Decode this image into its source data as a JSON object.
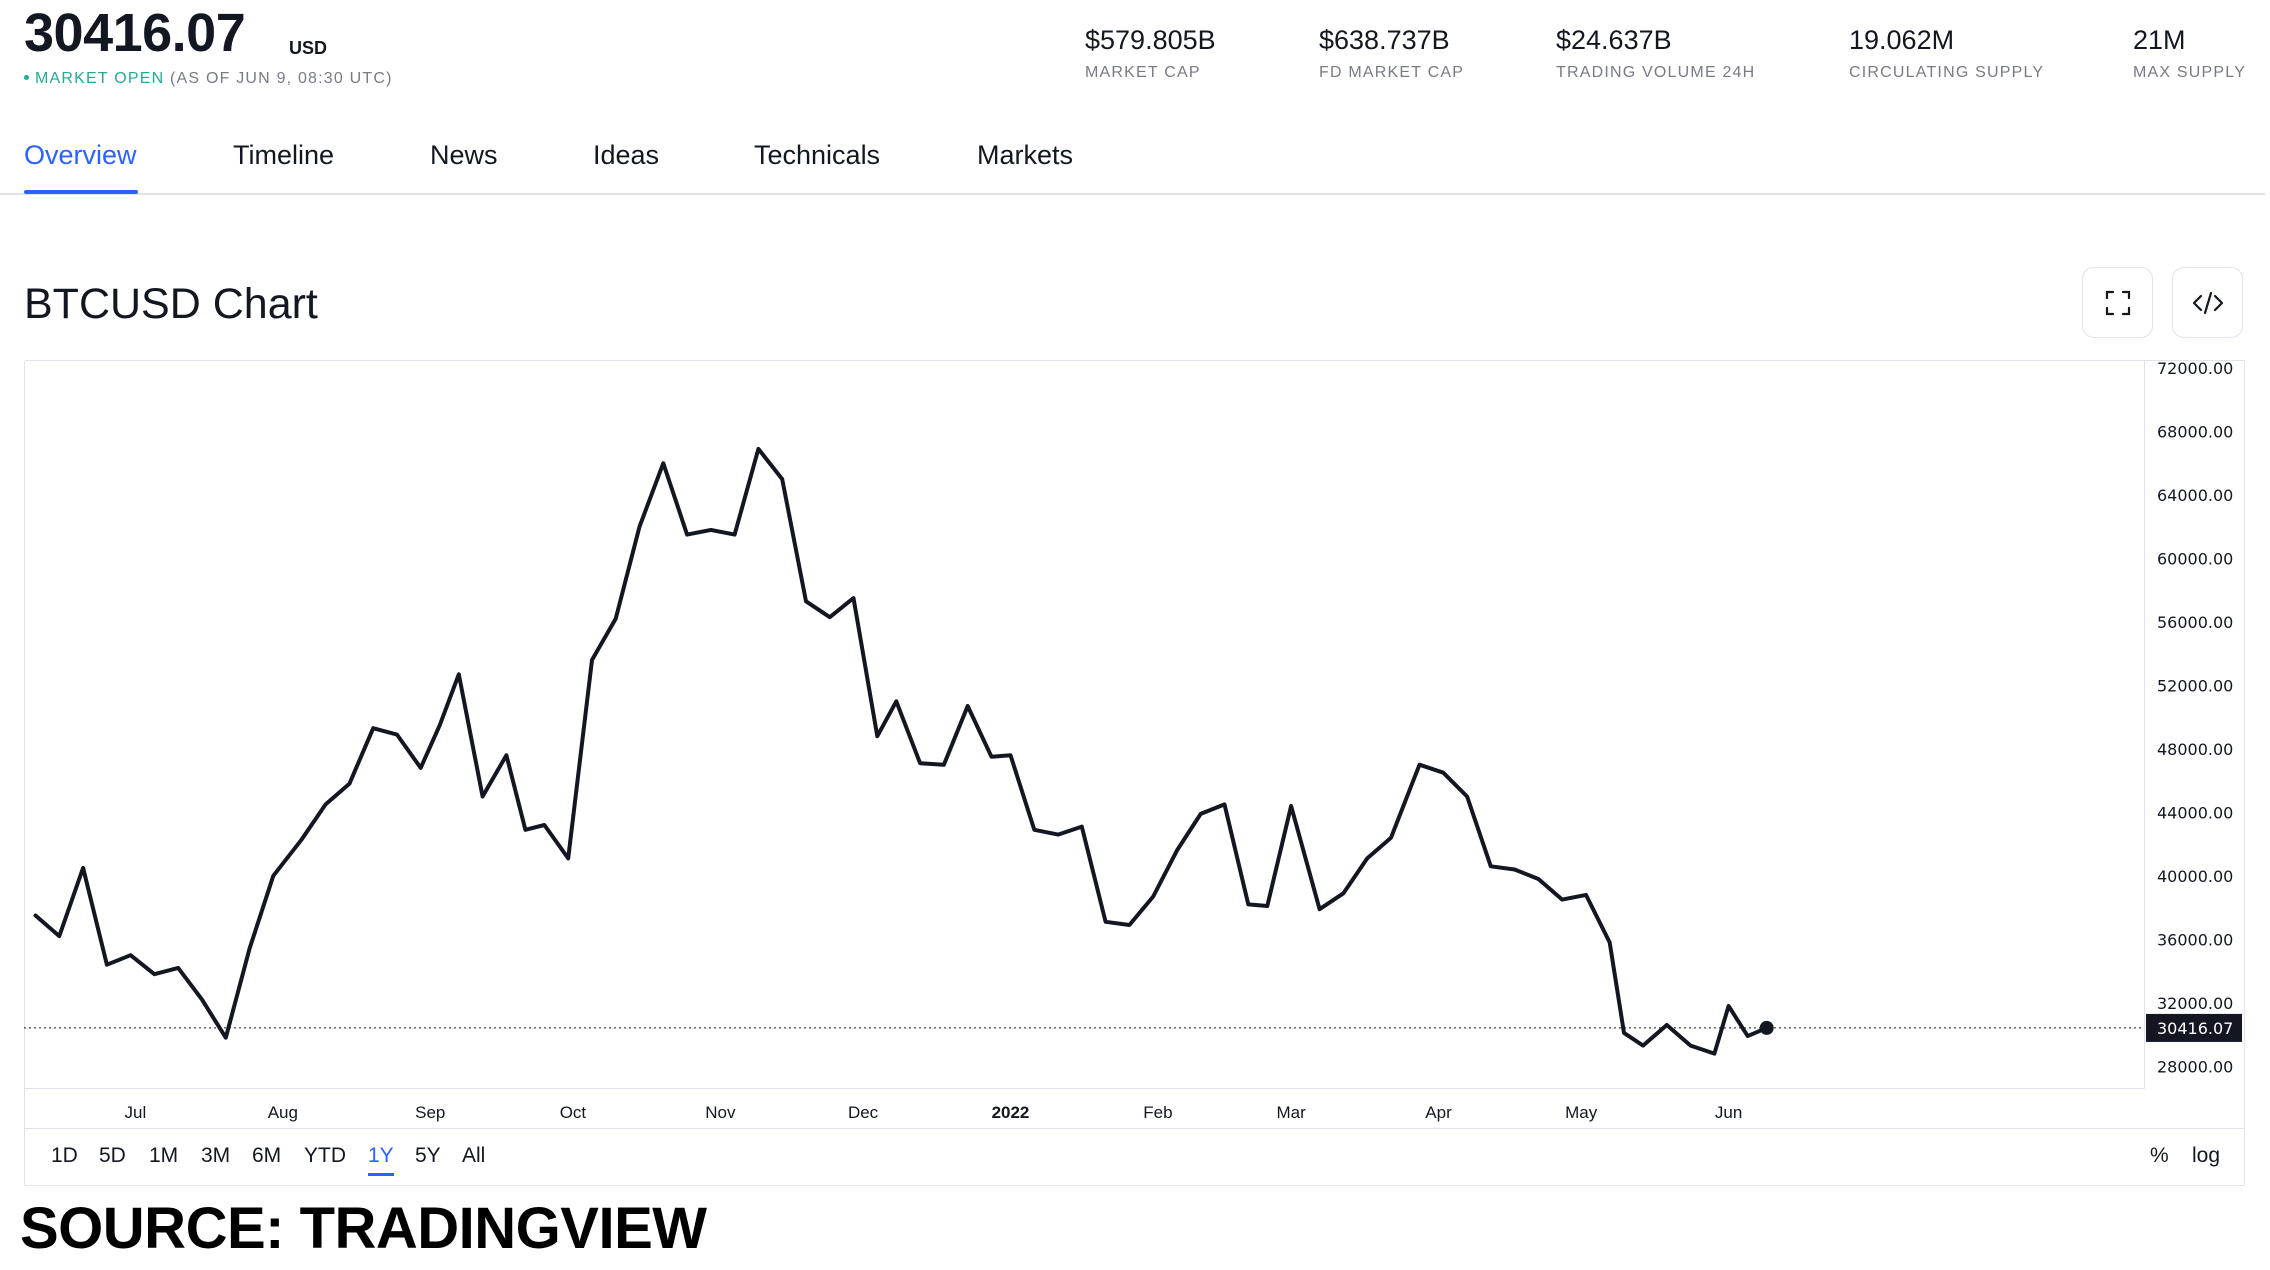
{
  "header": {
    "price": "30416.07",
    "currency": "USD",
    "market_status": "MARKET OPEN",
    "as_of": "(AS OF JUN 9, 08:30 UTC)"
  },
  "stats": [
    {
      "value": "$579.805B",
      "label": "MARKET CAP"
    },
    {
      "value": "$638.737B",
      "label": "FD MARKET CAP"
    },
    {
      "value": "$24.637B",
      "label": "TRADING VOLUME 24H"
    },
    {
      "value": "19.062M",
      "label": "CIRCULATING SUPPLY"
    },
    {
      "value": "21M",
      "label": "MAX SUPPLY"
    }
  ],
  "tabs": [
    {
      "label": "Overview",
      "active": true
    },
    {
      "label": "Timeline"
    },
    {
      "label": "News"
    },
    {
      "label": "Ideas"
    },
    {
      "label": "Technicals"
    },
    {
      "label": "Markets"
    }
  ],
  "chart_title": "BTCUSD Chart",
  "icons": {
    "fullscreen": "fullscreen-icon",
    "embed": "code-embed-icon"
  },
  "colors": {
    "accent": "#2962ff",
    "line": "#131722",
    "status_open": "#22ab94",
    "muted": "#787b86"
  },
  "range_buttons": [
    "1D",
    "5D",
    "1M",
    "3M",
    "6M",
    "YTD",
    "1Y",
    "5Y",
    "All"
  ],
  "active_range": "1Y",
  "scale_options": [
    "%",
    "log"
  ],
  "source_caption": "SOURCE: TRADINGVIEW",
  "chart_data": {
    "type": "line",
    "series": [
      {
        "x": [
          "2021-06-10",
          "2021-06-15",
          "2021-06-20",
          "2021-06-25",
          "2021-06-30",
          "2021-07-05",
          "2021-07-10",
          "2021-07-15",
          "2021-07-20",
          "2021-07-25",
          "2021-07-30",
          "2021-08-05",
          "2021-08-10",
          "2021-08-15",
          "2021-08-20",
          "2021-08-25",
          "2021-08-30",
          "2021-09-03",
          "2021-09-07",
          "2021-09-12",
          "2021-09-17",
          "2021-09-21",
          "2021-09-25",
          "2021-09-30",
          "2021-10-05",
          "2021-10-10",
          "2021-10-15",
          "2021-10-20",
          "2021-10-25",
          "2021-10-30",
          "2021-11-04",
          "2021-11-09",
          "2021-11-14",
          "2021-11-19",
          "2021-11-24",
          "2021-11-29",
          "2021-12-04",
          "2021-12-08",
          "2021-12-13",
          "2021-12-18",
          "2021-12-23",
          "2021-12-28",
          "2022-01-01",
          "2022-01-06",
          "2022-01-11",
          "2022-01-16",
          "2022-01-21",
          "2022-01-26",
          "2022-01-31",
          "2022-02-05",
          "2022-02-10",
          "2022-02-15",
          "2022-02-20",
          "2022-02-24",
          "2022-03-01",
          "2022-03-07",
          "2022-03-12",
          "2022-03-17",
          "2022-03-22",
          "2022-03-28",
          "2022-04-02",
          "2022-04-07",
          "2022-04-12",
          "2022-04-17",
          "2022-04-22",
          "2022-04-27",
          "2022-05-02",
          "2022-05-07",
          "2022-05-10",
          "2022-05-14",
          "2022-05-19",
          "2022-05-24",
          "2022-05-29",
          "2022-06-01",
          "2022-06-05",
          "2022-06-09"
        ],
        "y": [
          37500,
          36200,
          40500,
          34400,
          35000,
          33800,
          34200,
          32200,
          29800,
          35400,
          40000,
          42300,
          44500,
          45800,
          49300,
          48900,
          46800,
          49500,
          52700,
          45000,
          47600,
          42900,
          43200,
          41100,
          53600,
          56200,
          62000,
          66000,
          61500,
          61800,
          61500,
          66900,
          65000,
          57300,
          56300,
          57500,
          48800,
          51000,
          47100,
          47000,
          50700,
          47500,
          47600,
          42900,
          42600,
          43100,
          37100,
          36900,
          38700,
          41600,
          43900,
          44500,
          38200,
          38100,
          44400,
          37900,
          38900,
          41100,
          42400,
          47000,
          46500,
          45000,
          40600,
          40400,
          39800,
          38500,
          38800,
          35800,
          30100,
          29300,
          30600,
          29300,
          28800,
          31800,
          29900,
          30416
        ]
      }
    ],
    "ylim": [
      26000,
      72000
    ],
    "y_ticks": [
      "72000.00",
      "68000.00",
      "64000.00",
      "60000.00",
      "56000.00",
      "52000.00",
      "48000.00",
      "44000.00",
      "40000.00",
      "36000.00",
      "32000.00",
      "28000.00"
    ],
    "x_ticks": [
      {
        "label": "Jul",
        "date": "2021-07-01"
      },
      {
        "label": "Aug",
        "date": "2021-08-01"
      },
      {
        "label": "Sep",
        "date": "2021-09-01"
      },
      {
        "label": "Oct",
        "date": "2021-10-01"
      },
      {
        "label": "Nov",
        "date": "2021-11-01"
      },
      {
        "label": "Dec",
        "date": "2021-12-01"
      },
      {
        "label": "2022",
        "date": "2022-01-01",
        "bold": true
      },
      {
        "label": "Feb",
        "date": "2022-02-01"
      },
      {
        "label": "Mar",
        "date": "2022-03-01"
      },
      {
        "label": "Apr",
        "date": "2022-04-01"
      },
      {
        "label": "May",
        "date": "2022-05-01"
      },
      {
        "label": "Jun",
        "date": "2022-06-01"
      }
    ],
    "last_value_label": "30416.07",
    "last_value": 30416.07,
    "grid": false
  }
}
